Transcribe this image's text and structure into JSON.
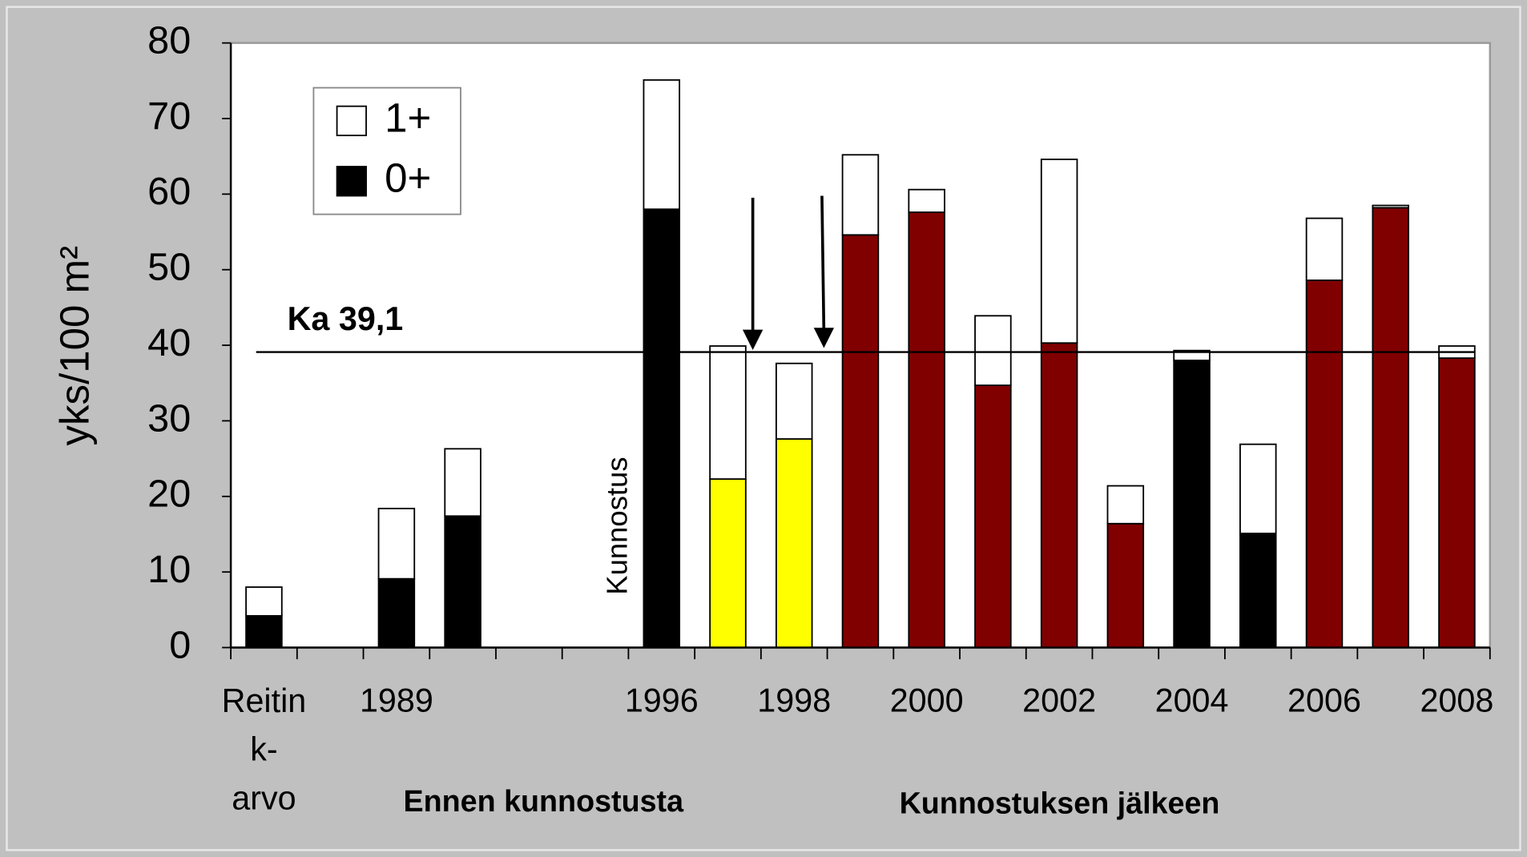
{
  "chart_data": {
    "type": "bar",
    "stacked": true,
    "y_label": "yks/100 m²",
    "categories": [
      "Reitin k-arvo",
      null,
      "1989",
      null,
      null,
      null,
      "1996",
      null,
      "1998",
      null,
      "2000",
      null,
      "2002",
      null,
      "2004",
      null,
      "2006",
      null,
      "2008"
    ],
    "series": [
      {
        "name": "0+",
        "color": "#000000",
        "colors": [
          "#000000",
          null,
          "#000000",
          "#000000",
          null,
          null,
          "#000000",
          "#ffff00",
          "#ffff00",
          "#800000",
          "#800000",
          "#800000",
          "#800000",
          "#800000",
          "#000000",
          "#000000",
          "#800000",
          "#800000",
          "#800000"
        ],
        "values": [
          4.2,
          null,
          9.1,
          17.4,
          null,
          null,
          58.0,
          22.3,
          27.6,
          54.6,
          57.6,
          34.7,
          40.3,
          16.4,
          38.0,
          15.1,
          48.6,
          58.2,
          38.3
        ]
      },
      {
        "name": "1+",
        "color": "#ffffff",
        "values": [
          3.8,
          null,
          9.3,
          8.9,
          null,
          null,
          17.1,
          17.6,
          10.0,
          10.6,
          3.0,
          9.2,
          24.3,
          5.0,
          1.3,
          11.8,
          8.2,
          0.3,
          1.6
        ]
      }
    ],
    "mean": {
      "value": 39.1,
      "label": "Ka 39,1"
    },
    "annotations": [
      "Kunnostus",
      "Ennen kunnostusta",
      "Kunnostuksen jälkeen"
    ],
    "ylim": [
      0,
      80
    ],
    "yticks": [
      0,
      10,
      20,
      30,
      40,
      50,
      60,
      70,
      80
    ],
    "grid": false,
    "legend": "upper left"
  }
}
